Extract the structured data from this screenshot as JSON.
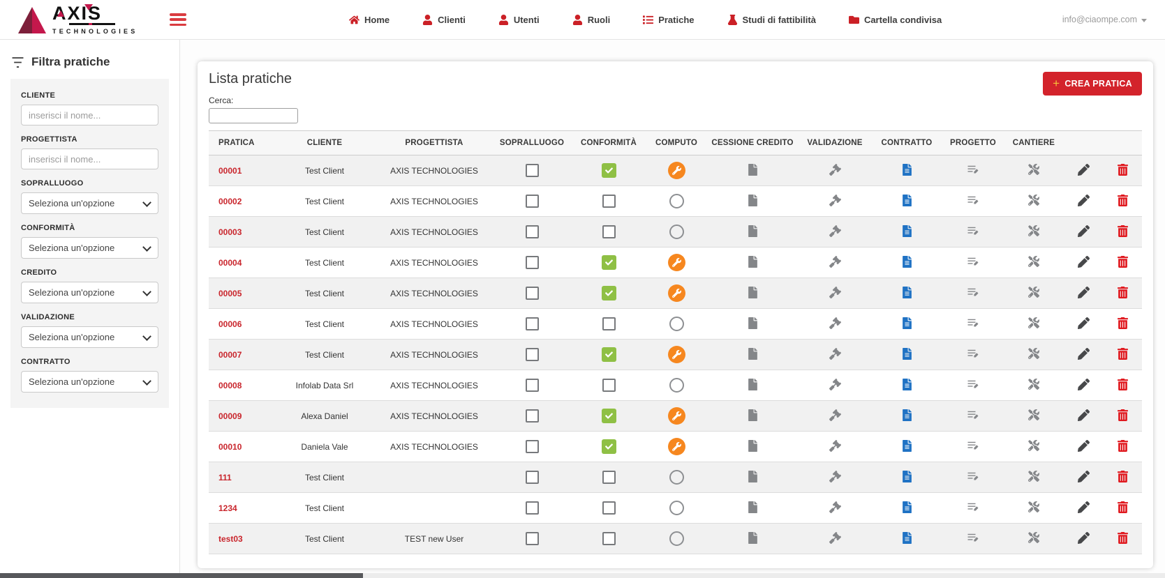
{
  "brand": {
    "name": "AXIS",
    "sub": "TECHNOLOGIES"
  },
  "navbar": {
    "items": [
      {
        "slug": "home",
        "label": "Home",
        "icon": "home-icon"
      },
      {
        "slug": "clienti",
        "label": "Clienti",
        "icon": "user-icon"
      },
      {
        "slug": "utenti",
        "label": "Utenti",
        "icon": "user-icon"
      },
      {
        "slug": "ruoli",
        "label": "Ruoli",
        "icon": "user-icon"
      },
      {
        "slug": "pratiche",
        "label": "Pratiche",
        "icon": "list-icon"
      },
      {
        "slug": "studi-di-fattibilita",
        "label": "Studi di fattibilità",
        "icon": "flask-icon"
      },
      {
        "slug": "cartella-condivisa",
        "label": "Cartella condivisa",
        "icon": "folder-icon"
      }
    ],
    "user_email": "info@ciaompe.com"
  },
  "sidebar": {
    "title": "Filtra pratiche",
    "filters": [
      {
        "label": "CLIENTE",
        "type": "input",
        "placeholder": "inserisci il nome..."
      },
      {
        "label": "PROGETTISTA",
        "type": "input",
        "placeholder": "inserisci il nome..."
      },
      {
        "label": "SOPRALLUOGO",
        "type": "select",
        "value": "Seleziona un'opzione"
      },
      {
        "label": "CONFORMITÀ",
        "type": "select",
        "value": "Seleziona un'opzione"
      },
      {
        "label": "CREDITO",
        "type": "select",
        "value": "Seleziona un'opzione"
      },
      {
        "label": "VALIDAZIONE",
        "type": "select",
        "value": "Seleziona un'opzione"
      },
      {
        "label": "CONTRATTO",
        "type": "select",
        "value": "Seleziona un'opzione"
      }
    ]
  },
  "main": {
    "title": "Lista pratiche",
    "create_button_label": "CREA PRATICA",
    "search_label": "Cerca:",
    "search_value": "",
    "table": {
      "columns": [
        "PRATICA",
        "CLIENTE",
        "PROGETTISTA",
        "SOPRALLUOGO",
        "CONFORMITÀ",
        "COMPUTO",
        "CESSIONE CREDITO",
        "VALIDAZIONE",
        "CONTRATTO",
        "PROGETTO",
        "CANTIERE",
        "",
        ""
      ],
      "action_icons": [
        "file-icon",
        "gavel-icon",
        "file-alt-icon",
        "list-edit-icon",
        "tools-icon",
        "pencil-icon",
        "trash-icon"
      ],
      "rows": [
        {
          "pratica": "00001",
          "cliente": "Test Client",
          "progettista": "AXIS TECHNOLOGIES",
          "sopralluogo": false,
          "conformita": true,
          "computo": true
        },
        {
          "pratica": "00002",
          "cliente": "Test Client",
          "progettista": "AXIS TECHNOLOGIES",
          "sopralluogo": false,
          "conformita": false,
          "computo": false
        },
        {
          "pratica": "00003",
          "cliente": "Test Client",
          "progettista": "AXIS TECHNOLOGIES",
          "sopralluogo": false,
          "conformita": false,
          "computo": false
        },
        {
          "pratica": "00004",
          "cliente": "Test Client",
          "progettista": "AXIS TECHNOLOGIES",
          "sopralluogo": false,
          "conformita": true,
          "computo": true
        },
        {
          "pratica": "00005",
          "cliente": "Test Client",
          "progettista": "AXIS TECHNOLOGIES",
          "sopralluogo": false,
          "conformita": true,
          "computo": true
        },
        {
          "pratica": "00006",
          "cliente": "Test Client",
          "progettista": "AXIS TECHNOLOGIES",
          "sopralluogo": false,
          "conformita": false,
          "computo": false
        },
        {
          "pratica": "00007",
          "cliente": "Test Client",
          "progettista": "AXIS TECHNOLOGIES",
          "sopralluogo": false,
          "conformita": true,
          "computo": true
        },
        {
          "pratica": "00008",
          "cliente": "Infolab Data Srl",
          "progettista": "AXIS TECHNOLOGIES",
          "sopralluogo": false,
          "conformita": false,
          "computo": false
        },
        {
          "pratica": "00009",
          "cliente": "Alexa Daniel",
          "progettista": "AXIS TECHNOLOGIES",
          "sopralluogo": false,
          "conformita": true,
          "computo": true
        },
        {
          "pratica": "00010",
          "cliente": "Daniela Vale",
          "progettista": "AXIS TECHNOLOGIES",
          "sopralluogo": false,
          "conformita": true,
          "computo": true
        },
        {
          "pratica": "111",
          "cliente": "Test Client",
          "progettista": "",
          "sopralluogo": false,
          "conformita": false,
          "computo": false
        },
        {
          "pratica": "1234",
          "cliente": "Test Client",
          "progettista": "",
          "sopralluogo": false,
          "conformita": false,
          "computo": false
        },
        {
          "pratica": "test03",
          "cliente": "Test Client",
          "progettista": "TEST new User",
          "sopralluogo": false,
          "conformita": false,
          "computo": false
        }
      ]
    }
  },
  "colors": {
    "accent_red": "#cb2026",
    "button_red": "#d3232b",
    "green_check": "#8fc045",
    "orange_badge": "#f6871f",
    "blue_contract": "#1f72c4",
    "trash_red": "#e0191f",
    "stripe_gray": "#f1f1f1"
  }
}
